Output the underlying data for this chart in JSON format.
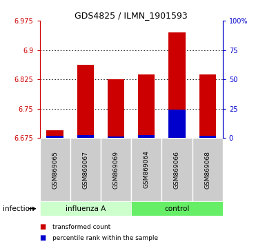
{
  "title": "GDS4825 / ILMN_1901593",
  "samples": [
    "GSM869065",
    "GSM869067",
    "GSM869069",
    "GSM869064",
    "GSM869066",
    "GSM869068"
  ],
  "group_label": "infection",
  "group_names": [
    "influenza A",
    "control"
  ],
  "group_colors_light": [
    "#ccffcc",
    "#66ee66"
  ],
  "ymin": 6.675,
  "ymax": 6.975,
  "yticks": [
    6.675,
    6.75,
    6.825,
    6.9,
    6.975
  ],
  "ytick_labels": [
    "6.675",
    "6.75",
    "6.825",
    "6.9",
    "6.975"
  ],
  "right_yticks_pct": [
    0,
    25,
    50,
    75,
    100
  ],
  "right_ytick_labels": [
    "0",
    "25",
    "50",
    "75",
    "100%"
  ],
  "transformed_counts": [
    6.695,
    6.862,
    6.825,
    6.837,
    6.945,
    6.838
  ],
  "percentile_ranks_vals": [
    6.681,
    6.682,
    6.679,
    6.682,
    6.748,
    6.68
  ],
  "bar_width": 0.55,
  "bar_color": "#cc0000",
  "percentile_color": "#0000cc",
  "legend_red": "transformed count",
  "legend_blue": "percentile rank within the sample",
  "left_color": "#cc0000",
  "right_color": "#0000cc",
  "dotted_color": "#555555"
}
